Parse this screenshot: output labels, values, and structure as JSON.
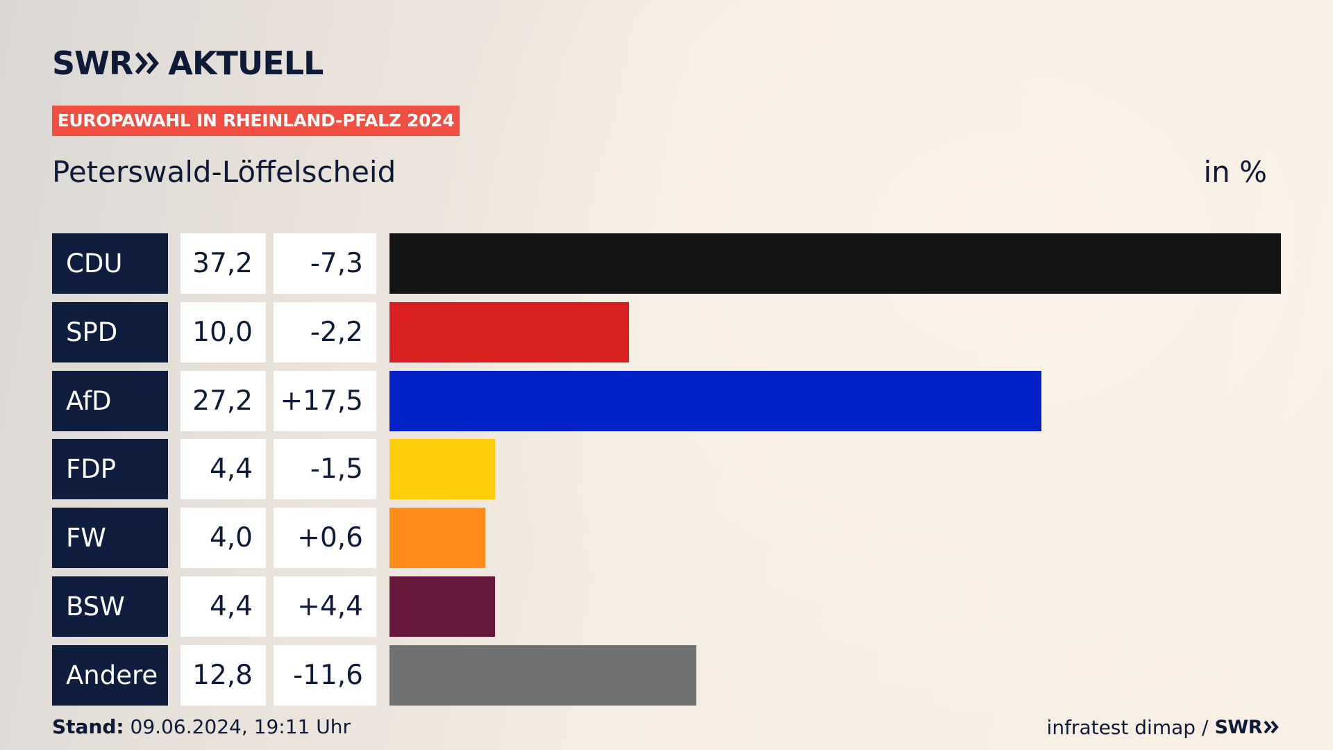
{
  "header": {
    "logo_swr": "SWR",
    "logo_aktuell": "AKTUELL",
    "tag": "EUROPAWAHL IN RHEINLAND-PFALZ 2024",
    "place": "Peterswald-Löffelscheid",
    "unit": "in %"
  },
  "chart_data": {
    "type": "bar",
    "orientation": "horizontal",
    "categories": [
      "CDU",
      "SPD",
      "AfD",
      "FDP",
      "FW",
      "BSW",
      "Andere"
    ],
    "values": [
      37.2,
      10.0,
      27.2,
      4.4,
      4.0,
      4.4,
      12.8
    ],
    "value_labels": [
      "37,2",
      "10,0",
      "27,2",
      "4,4",
      "4,0",
      "4,4",
      "12,8"
    ],
    "changes": [
      -7.3,
      -2.2,
      17.5,
      -1.5,
      0.6,
      4.4,
      -11.6
    ],
    "change_labels": [
      "-7,3",
      "-2,2",
      "+17,5",
      "-1,5",
      "+0,6",
      "+4,4",
      "-11,6"
    ],
    "colors": [
      "#141414",
      "#d91f20",
      "#0021c8",
      "#ffcd0a",
      "#ff8c1a",
      "#68183c",
      "#717272"
    ],
    "xlim": [
      0,
      37.2
    ],
    "grid": false
  },
  "footer": {
    "stand_label": "Stand:",
    "stand_value": "09.06.2024, 19:11 Uhr",
    "source": "infratest dimap",
    "separator": "/",
    "brand": "SWR"
  }
}
